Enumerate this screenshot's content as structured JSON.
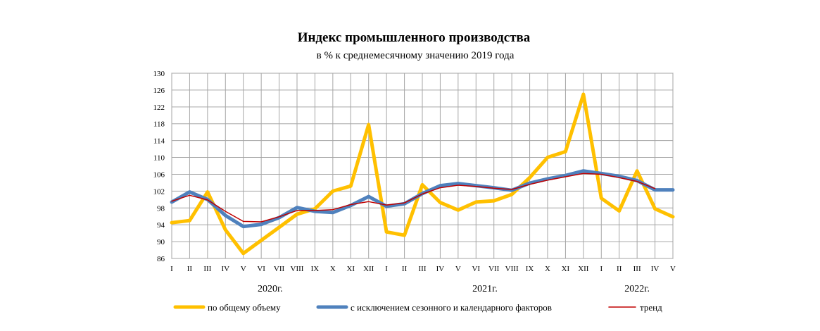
{
  "chart_data": {
    "type": "line",
    "title": "Индекс промышленного  производства",
    "subtitle": "в % к среднемесячному значению 2019  года",
    "xlabel": "",
    "ylabel": "",
    "ylim": [
      86,
      130
    ],
    "yticks": [
      86,
      90,
      94,
      98,
      102,
      106,
      110,
      114,
      118,
      122,
      126,
      130
    ],
    "grid": true,
    "legend_position": "bottom",
    "categories": [
      "I",
      "II",
      "III",
      "IV",
      "V",
      "VI",
      "VII",
      "VIII",
      "IX",
      "X",
      "XI",
      "XII",
      "I",
      "II",
      "III",
      "IV",
      "V",
      "VI",
      "VII",
      "VIII",
      "IX",
      "X",
      "XI",
      "XII",
      "I",
      "II",
      "III",
      "IV",
      "V"
    ],
    "year_labels": [
      {
        "label": "2020г.",
        "center_index": 5.5
      },
      {
        "label": "2021г.",
        "center_index": 17.5
      },
      {
        "label": "2022г.",
        "center_index": 26
      }
    ],
    "series": [
      {
        "name": "по общему объему",
        "color": "#FFC000",
        "values": [
          94.5,
          95.0,
          101.8,
          92.8,
          87.2,
          90.3,
          93.4,
          96.5,
          97.8,
          102.0,
          103.2,
          117.8,
          92.3,
          91.5,
          103.5,
          99.3,
          97.5,
          99.4,
          99.7,
          101.2,
          105.2,
          110.0,
          111.4,
          125.0,
          100.3,
          97.3,
          106.8,
          97.8,
          95.9
        ]
      },
      {
        "name": "с исключением сезонного и календарного факторов",
        "color": "#4F81BD",
        "values": [
          99.4,
          101.8,
          100.0,
          96.2,
          93.6,
          94.1,
          95.7,
          98.1,
          97.2,
          96.9,
          98.6,
          100.7,
          98.4,
          99.0,
          101.4,
          103.3,
          103.8,
          103.3,
          102.8,
          102.2,
          103.9,
          104.9,
          105.7,
          106.8,
          106.2,
          105.5,
          104.5,
          102.3,
          102.3
        ]
      },
      {
        "name": "тренд",
        "color": "#C00000",
        "values": [
          99.6,
          101.0,
          99.9,
          97.2,
          94.8,
          94.7,
          95.9,
          97.4,
          97.4,
          97.6,
          98.8,
          99.5,
          98.7,
          99.2,
          101.3,
          102.8,
          103.4,
          103.1,
          102.7,
          102.4,
          103.6,
          104.6,
          105.4,
          106.2,
          106.0,
          105.2,
          104.3,
          102.6,
          null
        ]
      }
    ]
  }
}
